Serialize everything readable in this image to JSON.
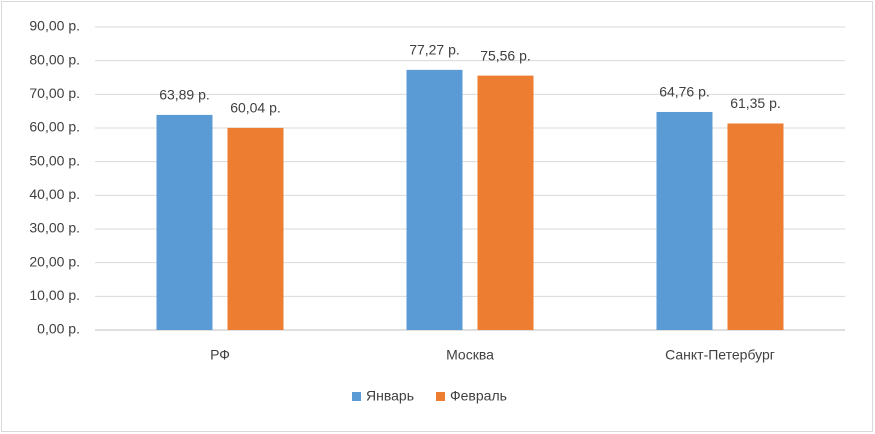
{
  "chart_data": {
    "type": "bar",
    "categories": [
      "РФ",
      "Москва",
      "Санкт-Петербург"
    ],
    "series": [
      {
        "name": "Январь",
        "color": "#5b9bd5",
        "values": [
          63.89,
          77.27,
          64.76
        ],
        "value_labels": [
          "63,89 р.",
          "77,27 р.",
          "64,76 р."
        ]
      },
      {
        "name": "Февраль",
        "color": "#ed7d31",
        "values": [
          60.04,
          75.56,
          61.35
        ],
        "value_labels": [
          "60,04 р.",
          "75,56 р.",
          "61,35 р."
        ]
      }
    ],
    "ylim": [
      0,
      90
    ],
    "yticks": [
      {
        "value": 0,
        "label": "0,00 р."
      },
      {
        "value": 10,
        "label": "10,00 р."
      },
      {
        "value": 20,
        "label": "20,00 р."
      },
      {
        "value": 30,
        "label": "30,00 р."
      },
      {
        "value": 40,
        "label": "40,00 р."
      },
      {
        "value": 50,
        "label": "50,00 р."
      },
      {
        "value": 60,
        "label": "60,00 р."
      },
      {
        "value": 70,
        "label": "70,00 р."
      },
      {
        "value": 80,
        "label": "80,00 р."
      },
      {
        "value": 90,
        "label": "90,00 р."
      }
    ],
    "grid": true,
    "legend": "bottom"
  }
}
